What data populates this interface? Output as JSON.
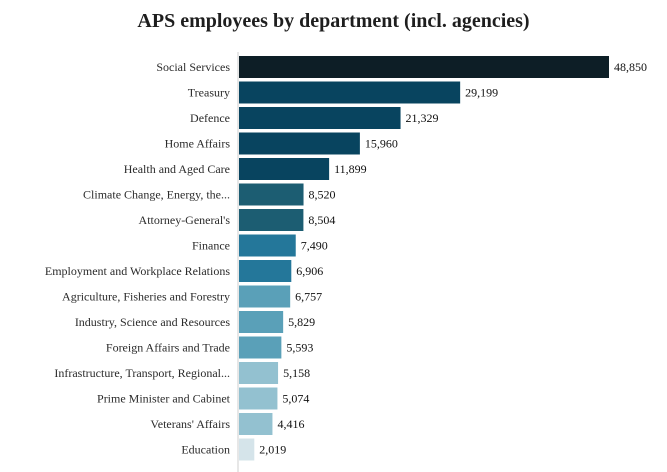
{
  "chart_data": {
    "type": "bar",
    "orientation": "horizontal",
    "title": "APS employees by department (incl. agencies)",
    "xlabel": "",
    "ylabel": "",
    "xlim": [
      0,
      48850
    ],
    "grid": false,
    "legend": "none",
    "categories": [
      "Social Services",
      "Treasury",
      "Defence",
      "Home Affairs",
      "Health and Aged Care",
      "Climate Change, Energy, the...",
      "Attorney-General's",
      "Finance",
      "Employment and Workplace Relations",
      "Agriculture, Fisheries and Forestry",
      "Industry, Science and Resources",
      "Foreign Affairs and Trade",
      "Infrastructure, Transport, Regional...",
      "Prime Minister and Cabinet",
      "Veterans' Affairs",
      "Education"
    ],
    "values": [
      48850,
      29199,
      21329,
      15960,
      11899,
      8520,
      8504,
      7490,
      6906,
      6757,
      5829,
      5593,
      5158,
      5074,
      4416,
      2019
    ],
    "value_labels": [
      "48,850",
      "29,199",
      "21,329",
      "15,960",
      "11,899",
      "8,520",
      "8,504",
      "7,490",
      "6,906",
      "6,757",
      "5,829",
      "5,593",
      "5,158",
      "5,074",
      "4,416",
      "2,019"
    ],
    "colors": [
      "#0d1e26",
      "#08445f",
      "#08445f",
      "#08445f",
      "#08445f",
      "#1c5d72",
      "#1c5d72",
      "#24779a",
      "#24779a",
      "#5aa0b8",
      "#5aa0b8",
      "#5aa0b8",
      "#93c1d0",
      "#93c1d0",
      "#93c1d0",
      "#d5e4ea"
    ]
  }
}
